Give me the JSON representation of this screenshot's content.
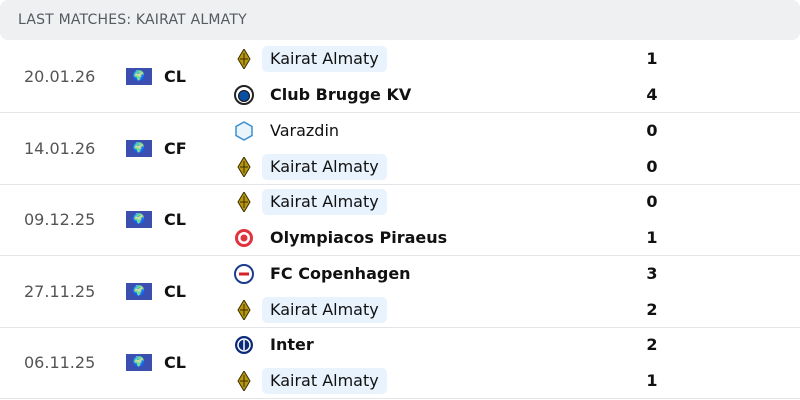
{
  "header": {
    "title": "LAST MATCHES: KAIRAT ALMATY"
  },
  "matches": [
    {
      "date": "20.01.26",
      "competition": "CL",
      "home": {
        "name": "Kairat Almaty",
        "score": "1",
        "logo": "kairat-logo",
        "highlight": true,
        "winner": false
      },
      "away": {
        "name": "Club Brugge KV",
        "score": "4",
        "logo": "club-brugge-logo",
        "highlight": false,
        "winner": true
      }
    },
    {
      "date": "14.01.26",
      "competition": "CF",
      "home": {
        "name": "Varazdin",
        "score": "0",
        "logo": "varazdin-logo",
        "highlight": false,
        "winner": false
      },
      "away": {
        "name": "Kairat Almaty",
        "score": "0",
        "logo": "kairat-logo",
        "highlight": true,
        "winner": false
      }
    },
    {
      "date": "09.12.25",
      "competition": "CL",
      "home": {
        "name": "Kairat Almaty",
        "score": "0",
        "logo": "kairat-logo",
        "highlight": true,
        "winner": false
      },
      "away": {
        "name": "Olympiacos Piraeus",
        "score": "1",
        "logo": "olympiacos-logo",
        "highlight": false,
        "winner": true
      }
    },
    {
      "date": "27.11.25",
      "competition": "CL",
      "home": {
        "name": "FC Copenhagen",
        "score": "3",
        "logo": "copenhagen-logo",
        "highlight": false,
        "winner": true
      },
      "away": {
        "name": "Kairat Almaty",
        "score": "2",
        "logo": "kairat-logo",
        "highlight": true,
        "winner": false
      }
    },
    {
      "date": "06.11.25",
      "competition": "CL",
      "home": {
        "name": "Inter",
        "score": "2",
        "logo": "inter-logo",
        "highlight": false,
        "winner": true
      },
      "away": {
        "name": "Kairat Almaty",
        "score": "1",
        "logo": "kairat-logo",
        "highlight": true,
        "winner": false
      }
    }
  ]
}
